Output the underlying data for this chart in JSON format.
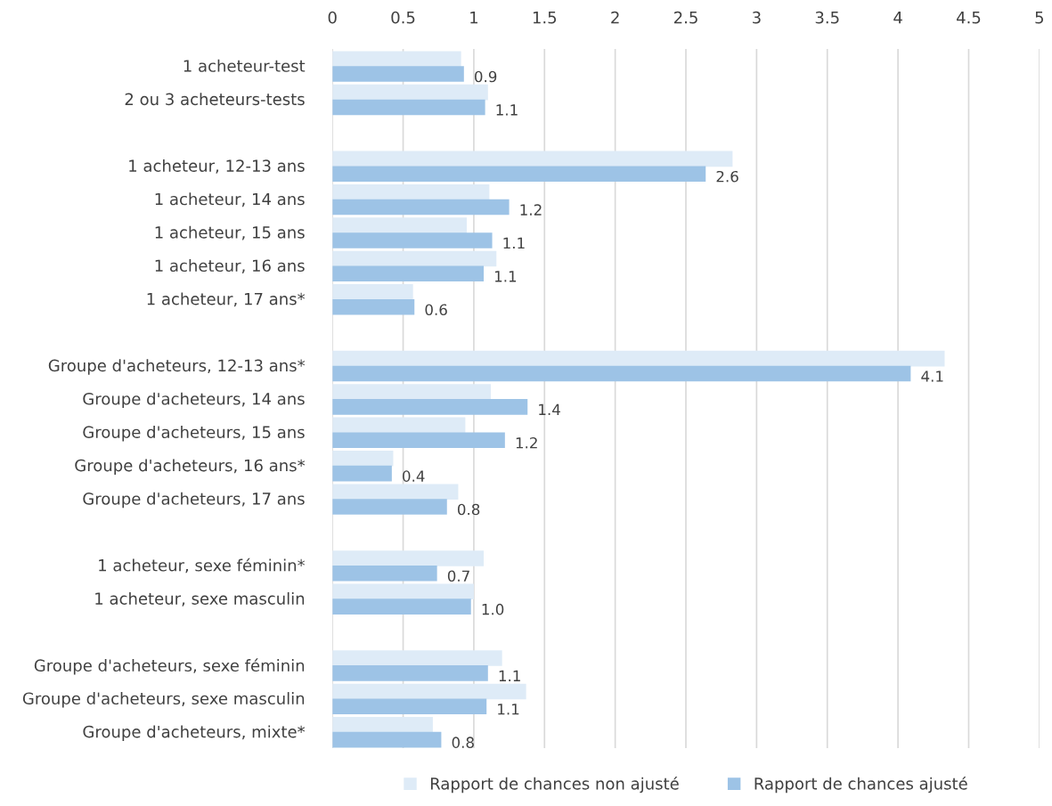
{
  "chart_data": {
    "type": "bar",
    "orientation": "horizontal",
    "categories": [
      "1 acheteur-test",
      "2 ou 3 acheteurs-tests",
      null,
      "1 acheteur, 12-13 ans",
      "1 acheteur, 14 ans",
      "1 acheteur, 15 ans",
      "1 acheteur, 16 ans",
      "1 acheteur, 17 ans*",
      null,
      "Groupe d'acheteurs, 12-13 ans*",
      "Groupe d'acheteurs, 14 ans",
      "Groupe d'acheteurs, 15 ans",
      "Groupe d'acheteurs, 16 ans*",
      "Groupe d'acheteurs, 17 ans",
      null,
      "1 acheteur, sexe féminin*",
      "1 acheteur, sexe masculin",
      null,
      "Groupe d'acheteurs, sexe féminin",
      "Groupe d'acheteurs, sexe masculin",
      "Groupe d'acheteurs, mixte*"
    ],
    "series": [
      {
        "name": "Rapport de chances non ajusté",
        "color": "#deebf7",
        "values": [
          0.91,
          1.1,
          null,
          2.83,
          1.11,
          0.95,
          1.16,
          0.57,
          null,
          4.33,
          1.12,
          0.94,
          0.43,
          0.89,
          null,
          1.07,
          1.0,
          null,
          1.2,
          1.37,
          0.71
        ]
      },
      {
        "name": "Rapport de chances ajusté",
        "color": "#9dc3e6",
        "values": [
          0.93,
          1.08,
          null,
          2.64,
          1.25,
          1.13,
          1.07,
          0.58,
          null,
          4.09,
          1.38,
          1.22,
          0.42,
          0.81,
          null,
          0.74,
          0.98,
          null,
          1.1,
          1.09,
          0.77
        ],
        "value_labels": [
          "0.9",
          "1.1",
          null,
          "2.6",
          "1.2",
          "1.1",
          "1.1",
          "0.6",
          null,
          "4.1",
          "1.4",
          "1.2",
          "0.4",
          "0.8",
          null,
          "0.7",
          "1.0",
          null,
          "1.1",
          "1.1",
          "0.8"
        ]
      }
    ],
    "xlim": [
      0,
      5
    ],
    "xticks": [
      0,
      0.5,
      1,
      1.5,
      2,
      2.5,
      3,
      3.5,
      4,
      4.5,
      5
    ],
    "grid": "x",
    "legend": "bottom"
  }
}
